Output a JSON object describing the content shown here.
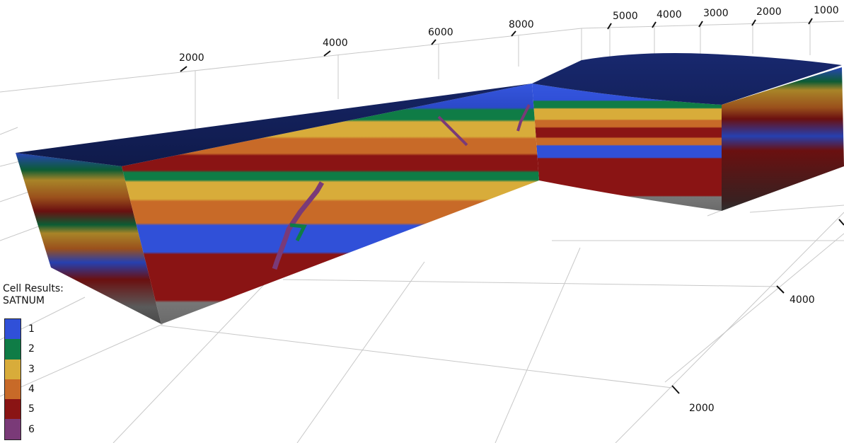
{
  "legend": {
    "title_line1": "Cell Results:",
    "title_line2": "SATNUM",
    "entries": [
      {
        "label": "1",
        "color": "#3050d8"
      },
      {
        "label": "2",
        "color": "#0f7c46"
      },
      {
        "label": "3",
        "color": "#d8ac3a"
      },
      {
        "label": "4",
        "color": "#c86a28"
      },
      {
        "label": "5",
        "color": "#8a1414"
      },
      {
        "label": "6",
        "color": "#7a3a78"
      }
    ]
  },
  "axes": {
    "top_far": [
      "2000",
      "4000",
      "6000",
      "8000"
    ],
    "top_right": [
      "5000",
      "4000",
      "3000",
      "2000",
      "1000"
    ],
    "right_side": [
      "4000",
      "2000"
    ]
  },
  "colors": {
    "top_surface": "#111d52",
    "base_gray": "#707070",
    "grid": "#c8c8c8"
  }
}
